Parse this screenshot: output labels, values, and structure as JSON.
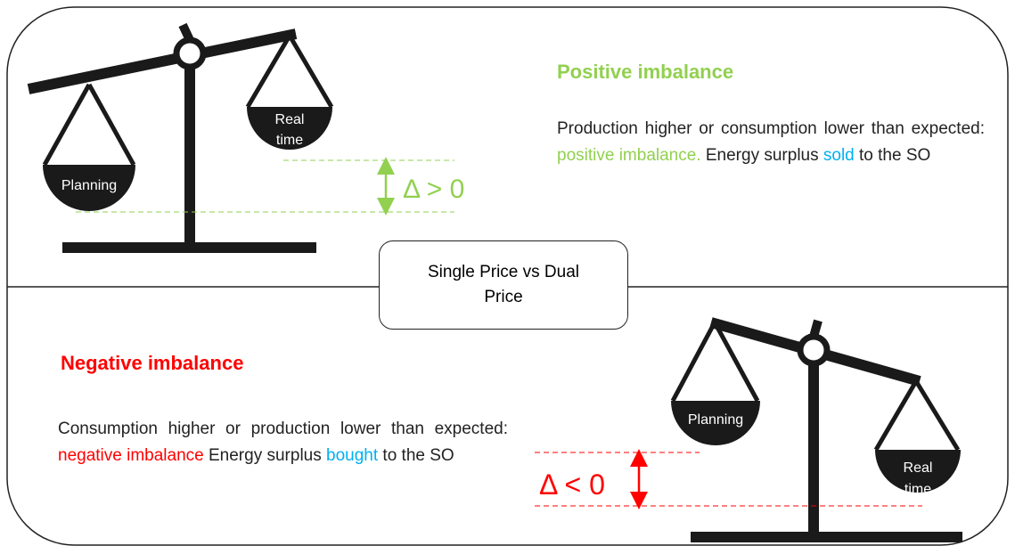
{
  "positive": {
    "title": "Positive imbalance",
    "text": [
      "Production higher or consumption lower than expected:",
      "positive imbalance.",
      "Energy surplus",
      "sold",
      "to the SO"
    ],
    "left_pan": "Planning",
    "right_pan": [
      "Real",
      "time"
    ],
    "delta": "Δ > 0"
  },
  "center": "Single Price vs Dual Price",
  "negative": {
    "title": "Negative imbalance",
    "text": [
      "Consumption higher or production lower than expected:",
      "negative imbalance",
      "Energy surplus",
      "bought",
      "to the SO"
    ],
    "left_pan": "Planning",
    "right_pan": [
      "Real",
      "time"
    ],
    "delta": "Δ < 0"
  }
}
